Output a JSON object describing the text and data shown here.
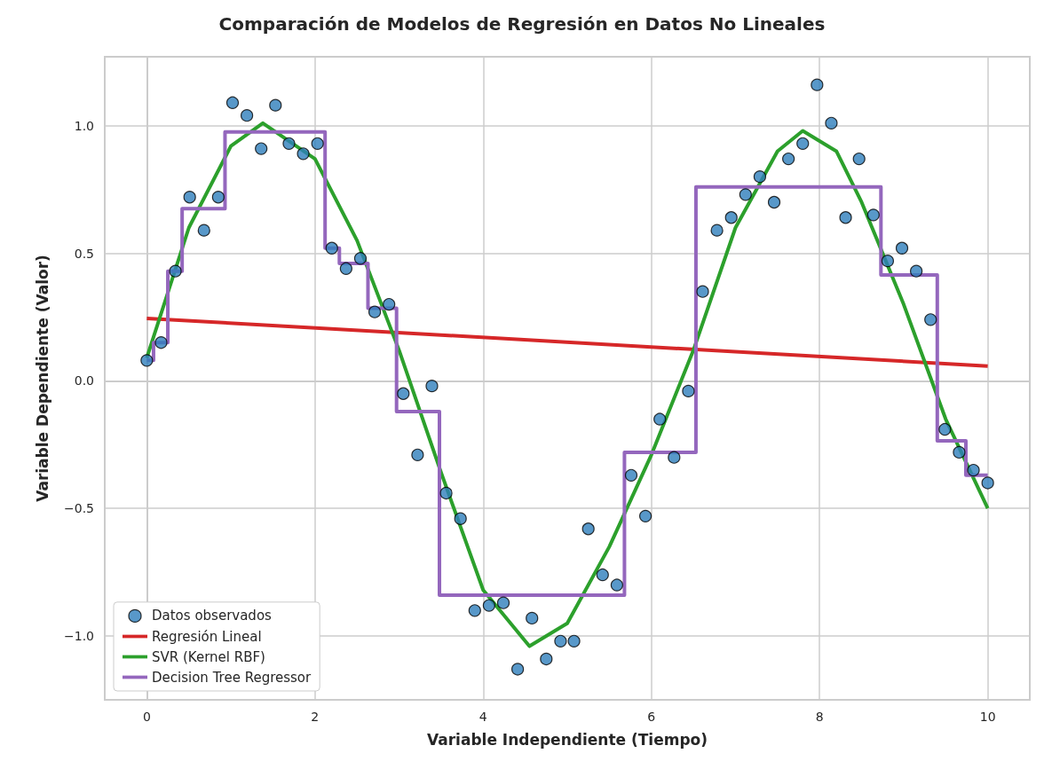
{
  "chart_data": {
    "type": "line",
    "title": "Comparación de Modelos de Regresión en Datos No Lineales",
    "xlabel": "Variable Independiente (Tiempo)",
    "ylabel": "Variable Dependiente (Valor)",
    "xlim": [
      -0.5,
      10.5
    ],
    "xticks": [
      0,
      2,
      4,
      6,
      8,
      10
    ],
    "ylim": [
      -1.25,
      1.27
    ],
    "yticks": [
      {
        "value": -1,
        "label": "−1.0"
      },
      {
        "value": -0.5,
        "label": "−0.5"
      },
      {
        "value": 0,
        "label": "0.0"
      },
      {
        "value": 0.5,
        "label": "0.5"
      },
      {
        "value": 1,
        "label": "1.0"
      }
    ],
    "grid": true,
    "legend": "bottom left",
    "series": [
      {
        "name": "Datos observados",
        "type": "scatter",
        "marker": "circle",
        "color": "#2e7ebc",
        "x": [
          0,
          0.17,
          0.34,
          0.51,
          0.68,
          0.85,
          1.02,
          1.19,
          1.36,
          1.53,
          1.69,
          1.86,
          2.03,
          2.2,
          2.37,
          2.54,
          2.71,
          2.88,
          3.05,
          3.22,
          3.39,
          3.56,
          3.73,
          3.9,
          4.07,
          4.24,
          4.41,
          4.58,
          4.75,
          4.92,
          5.08,
          5.25,
          5.42,
          5.59,
          5.76,
          5.93,
          6.1,
          6.27,
          6.44,
          6.61,
          6.78,
          6.95,
          7.12,
          7.29,
          7.46,
          7.63,
          7.8,
          7.97,
          8.14,
          8.31,
          8.47,
          8.64,
          8.81,
          8.98,
          9.15,
          9.32,
          9.49,
          9.66,
          9.83,
          10
        ],
        "values": [
          0.08,
          0.15,
          0.43,
          0.72,
          0.59,
          0.72,
          1.09,
          1.04,
          0.91,
          1.08,
          0.93,
          0.89,
          0.93,
          0.52,
          0.44,
          0.48,
          0.27,
          0.3,
          -0.05,
          -0.29,
          -0.02,
          -0.44,
          -0.54,
          -0.9,
          -0.88,
          -0.87,
          -1.13,
          -0.93,
          -1.09,
          -1.02,
          -1.02,
          -0.58,
          -0.76,
          -0.8,
          -0.37,
          -0.53,
          -0.15,
          -0.3,
          -0.04,
          0.35,
          0.59,
          0.64,
          0.73,
          0.8,
          0.7,
          0.87,
          0.93,
          1.16,
          1.01,
          0.64,
          0.87,
          0.65,
          0.47,
          0.52,
          0.43,
          0.24,
          -0.19,
          -0.28,
          -0.35,
          -0.4
        ]
      },
      {
        "name": "Regresión Lineal",
        "color": "#d62728",
        "x": [
          0,
          10
        ],
        "values": [
          0.245,
          0.058
        ]
      },
      {
        "name": "SVR (Kernel RBF)",
        "color": "#2ca02c",
        "x": [
          0,
          0.5,
          1,
          1.38,
          2,
          2.5,
          3,
          3.5,
          4,
          4.55,
          5,
          5.5,
          6,
          6.5,
          7,
          7.5,
          7.8,
          8.2,
          8.5,
          9,
          9.5,
          10
        ],
        "values": [
          0.09,
          0.6,
          0.92,
          1.01,
          0.87,
          0.55,
          0.12,
          -0.36,
          -0.82,
          -1.04,
          -0.95,
          -0.65,
          -0.29,
          0.12,
          0.6,
          0.9,
          0.98,
          0.9,
          0.7,
          0.3,
          -0.15,
          -0.5
        ]
      },
      {
        "name": "Decision Tree Regressor",
        "type": "step",
        "color": "#9467bd",
        "x": [
          0,
          0.08,
          0.25,
          0.42,
          0.93,
          2.12,
          2.29,
          2.63,
          2.97,
          3.48,
          5.68,
          6.53,
          8.73,
          9.4,
          9.74,
          10
        ],
        "values": [
          0.08,
          0.15,
          0.43,
          0.675,
          0.975,
          0.52,
          0.46,
          0.285,
          -0.12,
          -0.84,
          -0.28,
          0.76,
          0.415,
          -0.235,
          -0.37,
          -0.37
        ]
      }
    ]
  }
}
